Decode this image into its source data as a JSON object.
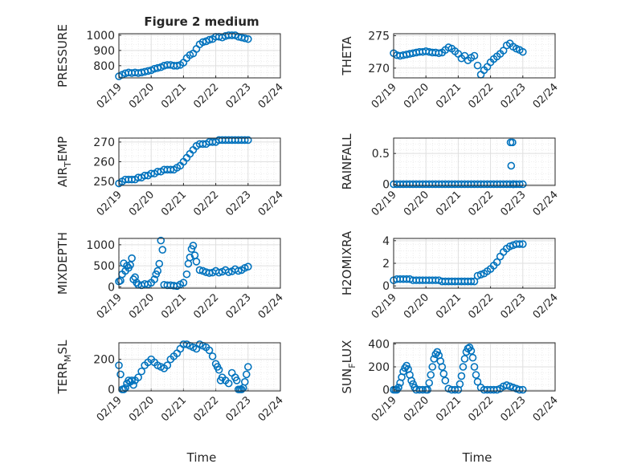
{
  "figure": {
    "title": "Figure 2 medium",
    "xlabel": "Time"
  },
  "colors": {
    "series": "#0072BD",
    "axis": "#262626",
    "grid": "#DFDFDF"
  },
  "chart_data": [
    {
      "type": "scatter",
      "ylabel": "PRESSURE",
      "xticks": [
        "02/19",
        "02/20",
        "02/21",
        "02/22",
        "02/23",
        "02/24"
      ],
      "xlim": [
        0,
        5
      ],
      "ylim": [
        720,
        1010
      ],
      "yticks": [
        800,
        900,
        1000
      ],
      "grid": true,
      "minor_grid": true,
      "x": [
        0,
        0.1,
        0.2,
        0.3,
        0.4,
        0.5,
        0.6,
        0.7,
        0.8,
        0.9,
        1.0,
        1.1,
        1.2,
        1.3,
        1.4,
        1.5,
        1.6,
        1.7,
        1.8,
        1.9,
        2.0,
        2.1,
        2.2,
        2.3,
        2.4,
        2.5,
        2.6,
        2.7,
        2.8,
        2.9,
        3.0,
        3.1,
        3.2,
        3.3,
        3.4,
        3.5,
        3.6,
        3.7,
        3.8,
        3.9,
        4.0
      ],
      "y": [
        730,
        740,
        750,
        755,
        752,
        755,
        752,
        755,
        760,
        765,
        770,
        780,
        785,
        790,
        800,
        805,
        805,
        800,
        800,
        805,
        820,
        850,
        870,
        880,
        910,
        940,
        955,
        960,
        970,
        975,
        990,
        990,
        985,
        995,
        1000,
        1000,
        1000,
        990,
        985,
        980,
        975
      ]
    },
    {
      "type": "scatter",
      "ylabel": "THETA",
      "xticks": [
        "02/19",
        "02/20",
        "02/21",
        "02/22",
        "02/23",
        "02/24"
      ],
      "xlim": [
        0,
        5
      ],
      "ylim": [
        268.5,
        275.3
      ],
      "yticks": [
        270,
        275
      ],
      "grid": true,
      "minor_grid": true,
      "x": [
        0,
        0.1,
        0.2,
        0.3,
        0.4,
        0.5,
        0.6,
        0.7,
        0.8,
        0.9,
        1.0,
        1.1,
        1.2,
        1.3,
        1.4,
        1.5,
        1.6,
        1.7,
        1.8,
        1.9,
        2.0,
        2.1,
        2.2,
        2.3,
        2.4,
        2.5,
        2.6,
        2.7,
        2.8,
        2.9,
        3.0,
        3.1,
        3.2,
        3.3,
        3.4,
        3.5,
        3.6,
        3.7,
        3.8,
        3.9,
        4.0
      ],
      "y": [
        272.3,
        272.0,
        271.9,
        272.0,
        272.1,
        272.2,
        272.3,
        272.4,
        272.5,
        272.5,
        272.6,
        272.5,
        272.4,
        272.4,
        272.3,
        272.4,
        272.8,
        273.2,
        273.0,
        272.6,
        272.2,
        271.5,
        271.9,
        271.2,
        271.6,
        271.9,
        270.4,
        269.0,
        269.7,
        270.2,
        270.9,
        271.4,
        271.8,
        272.2,
        272.7,
        273.5,
        273.8,
        273.3,
        273.0,
        272.8,
        272.5
      ]
    },
    {
      "type": "scatter",
      "ylabel": "AIR_TEMP",
      "xticks": [
        "02/19",
        "02/20",
        "02/21",
        "02/22",
        "02/23",
        "02/24"
      ],
      "xlim": [
        0,
        5
      ],
      "ylim": [
        248,
        272
      ],
      "yticks": [
        250,
        260,
        270
      ],
      "grid": true,
      "minor_grid": true,
      "x": [
        0,
        0.1,
        0.2,
        0.3,
        0.4,
        0.5,
        0.6,
        0.7,
        0.8,
        0.9,
        1.0,
        1.1,
        1.2,
        1.3,
        1.4,
        1.5,
        1.6,
        1.7,
        1.8,
        1.9,
        2.0,
        2.1,
        2.2,
        2.3,
        2.4,
        2.5,
        2.6,
        2.7,
        2.8,
        2.9,
        3.0,
        3.1,
        3.2,
        3.3,
        3.4,
        3.5,
        3.6,
        3.7,
        3.8,
        3.9,
        4.0
      ],
      "y": [
        249,
        250,
        251,
        251,
        251,
        251,
        252,
        252,
        253,
        253,
        254,
        254,
        255,
        255,
        256,
        256,
        256,
        256,
        257,
        258,
        260,
        262,
        264,
        266,
        268,
        269,
        269,
        269,
        270,
        270,
        270,
        271,
        271,
        271,
        271,
        271,
        271,
        271,
        271,
        271,
        271
      ]
    },
    {
      "type": "scatter",
      "ylabel": "RAINFALL",
      "xticks": [
        "02/19",
        "02/20",
        "02/21",
        "02/22",
        "02/23",
        "02/24"
      ],
      "xlim": [
        0,
        5
      ],
      "ylim": [
        -0.02,
        0.75
      ],
      "yticks": [
        0,
        0.5
      ],
      "grid": true,
      "minor_grid": true,
      "x": [
        0,
        0.1,
        0.2,
        0.3,
        0.4,
        0.5,
        0.6,
        0.7,
        0.8,
        0.9,
        1.0,
        1.1,
        1.2,
        1.3,
        1.4,
        1.5,
        1.6,
        1.7,
        1.8,
        1.9,
        2.0,
        2.1,
        2.2,
        2.3,
        2.4,
        2.5,
        2.6,
        2.7,
        2.8,
        2.9,
        3.0,
        3.1,
        3.2,
        3.3,
        3.4,
        3.5,
        3.6,
        3.7,
        3.8,
        3.9,
        4.0,
        3.62,
        3.64,
        3.68,
        3.7,
        3.72
      ],
      "y": [
        0,
        0,
        0,
        0,
        0,
        0,
        0,
        0,
        0,
        0,
        0,
        0,
        0,
        0,
        0,
        0,
        0,
        0,
        0,
        0,
        0,
        0,
        0,
        0,
        0,
        0,
        0,
        0,
        0,
        0,
        0,
        0,
        0,
        0,
        0,
        0,
        0,
        0,
        0,
        0,
        0,
        0.68,
        0.3,
        0.68,
        0,
        0
      ]
    },
    {
      "type": "scatter",
      "ylabel": "MIXDEPTH",
      "xticks": [
        "02/19",
        "02/20",
        "02/21",
        "02/22",
        "02/23",
        "02/24"
      ],
      "xlim": [
        0,
        5
      ],
      "ylim": [
        -30,
        1150
      ],
      "yticks": [
        0,
        500,
        1000
      ],
      "grid": true,
      "minor_grid": true,
      "x": [
        0,
        0.05,
        0.1,
        0.15,
        0.2,
        0.25,
        0.3,
        0.35,
        0.4,
        0.45,
        0.5,
        0.55,
        0.6,
        0.7,
        0.8,
        0.9,
        1.0,
        1.1,
        1.15,
        1.2,
        1.25,
        1.3,
        1.35,
        1.4,
        1.5,
        1.6,
        1.7,
        1.8,
        1.9,
        2.0,
        2.1,
        2.15,
        2.2,
        2.25,
        2.3,
        2.35,
        2.4,
        2.5,
        2.6,
        2.7,
        2.8,
        2.9,
        3.0,
        3.1,
        3.2,
        3.3,
        3.4,
        3.5,
        3.6,
        3.7,
        3.8,
        3.9,
        4.0
      ],
      "y": [
        130,
        150,
        300,
        560,
        380,
        500,
        450,
        520,
        680,
        180,
        230,
        100,
        50,
        40,
        70,
        60,
        100,
        180,
        300,
        380,
        550,
        1100,
        880,
        50,
        40,
        40,
        30,
        20,
        60,
        100,
        300,
        550,
        700,
        900,
        980,
        750,
        600,
        400,
        380,
        350,
        330,
        340,
        380,
        340,
        360,
        400,
        350,
        370,
        420,
        380,
        400,
        450,
        480
      ]
    },
    {
      "type": "scatter",
      "ylabel": "H2OMIXRA",
      "xticks": [
        "02/19",
        "02/20",
        "02/21",
        "02/22",
        "02/23",
        "02/24"
      ],
      "xlim": [
        0,
        5
      ],
      "ylim": [
        -0.2,
        4.2
      ],
      "yticks": [
        0,
        2,
        4
      ],
      "grid": true,
      "minor_grid": true,
      "x": [
        0,
        0.1,
        0.2,
        0.3,
        0.4,
        0.5,
        0.6,
        0.7,
        0.8,
        0.9,
        1.0,
        1.1,
        1.2,
        1.3,
        1.4,
        1.5,
        1.6,
        1.7,
        1.8,
        1.9,
        2.0,
        2.1,
        2.2,
        2.3,
        2.4,
        2.5,
        2.6,
        2.7,
        2.8,
        2.9,
        3.0,
        3.1,
        3.2,
        3.3,
        3.4,
        3.5,
        3.6,
        3.7,
        3.8,
        3.9,
        4.0
      ],
      "y": [
        0.5,
        0.6,
        0.6,
        0.6,
        0.6,
        0.6,
        0.5,
        0.5,
        0.5,
        0.5,
        0.5,
        0.5,
        0.5,
        0.5,
        0.5,
        0.4,
        0.4,
        0.4,
        0.4,
        0.4,
        0.4,
        0.4,
        0.4,
        0.4,
        0.4,
        0.4,
        0.9,
        1.0,
        1.1,
        1.3,
        1.5,
        1.8,
        2.1,
        2.6,
        3.0,
        3.3,
        3.5,
        3.6,
        3.7,
        3.7,
        3.7
      ]
    },
    {
      "type": "scatter",
      "ylabel": "TERR_MSL",
      "xticks": [
        "02/19",
        "02/20",
        "02/21",
        "02/22",
        "02/23",
        "02/24"
      ],
      "xlim": [
        0,
        5
      ],
      "ylim": [
        -10,
        310
      ],
      "yticks": [
        0,
        200
      ],
      "grid": true,
      "minor_grid": true,
      "x": [
        0,
        0.05,
        0.1,
        0.15,
        0.2,
        0.25,
        0.3,
        0.35,
        0.4,
        0.45,
        0.5,
        0.6,
        0.7,
        0.8,
        0.9,
        1.0,
        1.1,
        1.2,
        1.3,
        1.4,
        1.5,
        1.6,
        1.7,
        1.8,
        1.9,
        2.0,
        2.1,
        2.2,
        2.3,
        2.4,
        2.5,
        2.6,
        2.7,
        2.8,
        2.9,
        3.0,
        3.05,
        3.1,
        3.15,
        3.2,
        3.3,
        3.4,
        3.5,
        3.6,
        3.65,
        3.7,
        3.75,
        3.8,
        3.85,
        3.9,
        3.95,
        4.0
      ],
      "y": [
        160,
        100,
        0,
        0,
        10,
        40,
        60,
        50,
        60,
        30,
        60,
        80,
        120,
        160,
        180,
        200,
        180,
        160,
        150,
        140,
        160,
        200,
        220,
        240,
        270,
        300,
        300,
        290,
        280,
        270,
        300,
        290,
        280,
        260,
        220,
        170,
        150,
        130,
        60,
        80,
        60,
        40,
        110,
        80,
        60,
        0,
        0,
        0,
        10,
        50,
        100,
        150
      ]
    },
    {
      "type": "scatter",
      "ylabel": "SUN_FLUX",
      "xticks": [
        "02/19",
        "02/20",
        "02/21",
        "02/22",
        "02/23",
        "02/24"
      ],
      "xlim": [
        0,
        5
      ],
      "ylim": [
        -10,
        410
      ],
      "yticks": [
        0,
        200,
        400
      ],
      "grid": true,
      "minor_grid": true,
      "x": [
        0,
        0.05,
        0.1,
        0.15,
        0.2,
        0.25,
        0.3,
        0.35,
        0.4,
        0.45,
        0.5,
        0.55,
        0.6,
        0.65,
        0.7,
        0.8,
        0.9,
        1.0,
        1.05,
        1.1,
        1.15,
        1.2,
        1.25,
        1.3,
        1.35,
        1.4,
        1.45,
        1.5,
        1.55,
        1.6,
        1.7,
        1.8,
        1.9,
        2.0,
        2.05,
        2.1,
        2.15,
        2.2,
        2.25,
        2.3,
        2.35,
        2.4,
        2.45,
        2.5,
        2.55,
        2.6,
        2.7,
        2.8,
        2.9,
        3.0,
        3.1,
        3.2,
        3.3,
        3.4,
        3.5,
        3.6,
        3.7,
        3.8,
        3.9,
        4.0
      ],
      "y": [
        0,
        0,
        0,
        20,
        60,
        110,
        160,
        190,
        210,
        180,
        130,
        80,
        50,
        20,
        0,
        0,
        0,
        0,
        0,
        60,
        130,
        200,
        270,
        310,
        330,
        300,
        250,
        200,
        140,
        80,
        10,
        0,
        0,
        0,
        50,
        120,
        200,
        270,
        330,
        360,
        370,
        340,
        280,
        200,
        130,
        70,
        20,
        0,
        0,
        0,
        0,
        0,
        10,
        30,
        40,
        30,
        20,
        10,
        0,
        0
      ]
    }
  ]
}
